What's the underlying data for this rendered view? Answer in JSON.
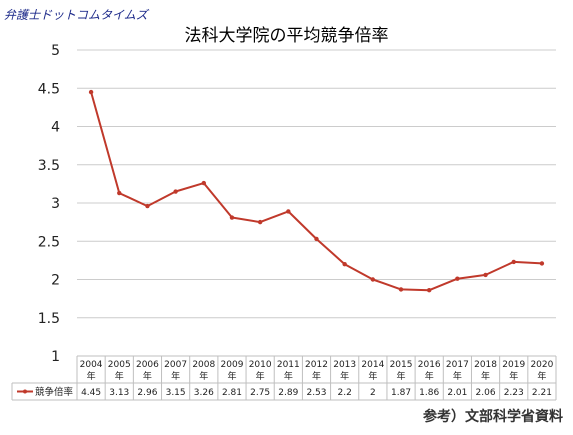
{
  "brand": "弁護士ドットコムタイムズ",
  "source": "参考）文部科学省資料",
  "colors": {
    "line": "#c0392b",
    "grid": "#cccccc",
    "table_border": "#bfbfbf"
  },
  "chart_data": {
    "type": "line",
    "title": "法科大学院の平均競争倍率",
    "xlabel": "",
    "ylabel": "",
    "ylim": [
      1,
      5
    ],
    "yticks": [
      "1",
      "1.5",
      "2",
      "2.5",
      "3",
      "3.5",
      "4",
      "4.5",
      "5"
    ],
    "grid": true,
    "categories": [
      "2004",
      "2005",
      "2006",
      "2007",
      "2008",
      "2009",
      "2010",
      "2011",
      "2012",
      "2013",
      "2014",
      "2015",
      "2016",
      "2017",
      "2018",
      "2019",
      "2020"
    ],
    "category_suffix": "年",
    "series": [
      {
        "name": "競争倍率",
        "values": [
          4.45,
          3.13,
          2.96,
          3.15,
          3.26,
          2.81,
          2.75,
          2.89,
          2.53,
          2.2,
          2,
          1.87,
          1.86,
          2.01,
          2.06,
          2.23,
          2.21
        ],
        "labels": [
          "4.45",
          "3.13",
          "2.96",
          "3.15",
          "3.26",
          "2.81",
          "2.75",
          "2.89",
          "2.53",
          "2.2",
          "2",
          "1.87",
          "1.86",
          "2.01",
          "2.06",
          "2.23",
          "2.21"
        ]
      }
    ]
  }
}
